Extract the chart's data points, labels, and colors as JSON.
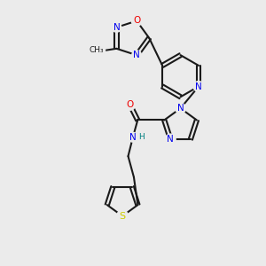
{
  "background_color": "#ebebeb",
  "bond_color": "#1a1a1a",
  "atom_colors": {
    "N": "#0000ee",
    "O": "#ee0000",
    "S": "#cccc00",
    "H": "#008080",
    "C": "#1a1a1a"
  },
  "figsize": [
    3.0,
    3.0
  ],
  "dpi": 100
}
